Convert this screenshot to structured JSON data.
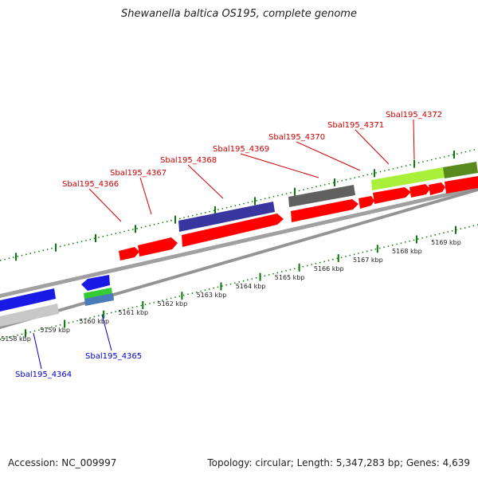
{
  "title": "Shewanella baltica OS195, complete genome",
  "footer": {
    "accession": "Accession: NC_009997",
    "summary": "Topology: circular; Length: 5,347,283 bp; Genes: 4,639"
  },
  "colors": {
    "forward_gene": "#ff0000",
    "label_forward": "#cc0000",
    "label_reverse": "#0000cc",
    "axis": "#888888",
    "tick": "#0a7a0a"
  },
  "scale": {
    "unit": "kbp",
    "tick_labels": [
      "5158 kbp",
      "5159 kbp",
      "5160 kbp",
      "5161 kbp",
      "5162 kbp",
      "5163 kbp",
      "5164 kbp",
      "5165 kbp",
      "5166 kbp",
      "5167 kbp",
      "5168 kbp",
      "5169 kbp"
    ]
  },
  "gene_labels": {
    "forward": [
      "Sbal195_4366",
      "Sbal195_4367",
      "Sbal195_4368",
      "Sbal195_4369",
      "Sbal195_4370",
      "Sbal195_4371",
      "Sbal195_4372"
    ],
    "reverse": [
      "Sbal195_4364",
      "Sbal195_4365"
    ]
  }
}
